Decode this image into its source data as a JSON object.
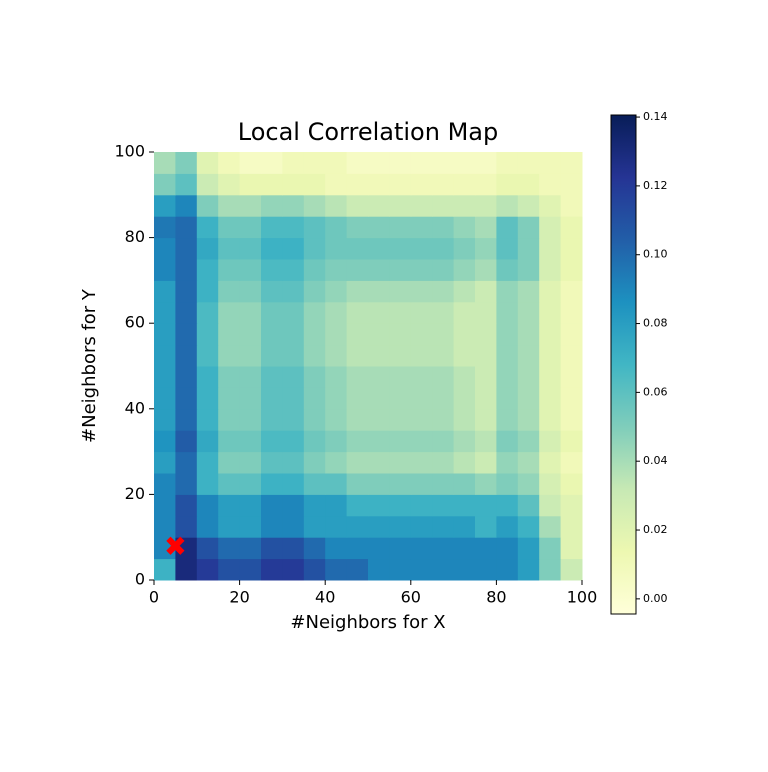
{
  "chart_data": {
    "type": "heatmap",
    "title": "Local Correlation Map",
    "xlabel": "#Neighbors for X",
    "ylabel": "#Neighbors for Y",
    "xbins": [
      0,
      5,
      10,
      15,
      20,
      25,
      30,
      35,
      40,
      45,
      50,
      55,
      60,
      65,
      70,
      75,
      80,
      85,
      90,
      95,
      100
    ],
    "ybins": [
      0,
      5,
      10,
      15,
      20,
      25,
      30,
      35,
      40,
      45,
      50,
      55,
      60,
      65,
      70,
      75,
      80,
      85,
      90,
      95,
      100
    ],
    "values": [
      [
        0.07,
        0.13,
        0.12,
        0.11,
        0.11,
        0.12,
        0.12,
        0.11,
        0.1,
        0.1,
        0.09,
        0.09,
        0.09,
        0.09,
        0.09,
        0.09,
        0.09,
        0.08,
        0.05,
        0.03
      ],
      [
        0.09,
        0.13,
        0.11,
        0.1,
        0.1,
        0.11,
        0.11,
        0.1,
        0.09,
        0.09,
        0.09,
        0.09,
        0.09,
        0.09,
        0.09,
        0.09,
        0.09,
        0.08,
        0.05,
        0.02
      ],
      [
        0.09,
        0.11,
        0.09,
        0.08,
        0.08,
        0.09,
        0.09,
        0.08,
        0.08,
        0.08,
        0.08,
        0.08,
        0.08,
        0.08,
        0.08,
        0.07,
        0.08,
        0.07,
        0.04,
        0.02
      ],
      [
        0.09,
        0.11,
        0.09,
        0.08,
        0.08,
        0.09,
        0.09,
        0.08,
        0.08,
        0.07,
        0.07,
        0.07,
        0.07,
        0.07,
        0.07,
        0.07,
        0.07,
        0.06,
        0.03,
        0.02
      ],
      [
        0.09,
        0.1,
        0.07,
        0.06,
        0.06,
        0.07,
        0.07,
        0.06,
        0.06,
        0.05,
        0.05,
        0.05,
        0.05,
        0.05,
        0.05,
        0.045,
        0.05,
        0.045,
        0.025,
        0.015
      ],
      [
        0.08,
        0.1,
        0.07,
        0.05,
        0.05,
        0.06,
        0.06,
        0.05,
        0.045,
        0.04,
        0.04,
        0.04,
        0.04,
        0.04,
        0.035,
        0.03,
        0.045,
        0.04,
        0.02,
        0.01
      ],
      [
        0.085,
        0.105,
        0.075,
        0.055,
        0.055,
        0.065,
        0.065,
        0.055,
        0.05,
        0.045,
        0.045,
        0.045,
        0.045,
        0.045,
        0.04,
        0.035,
        0.05,
        0.045,
        0.025,
        0.015
      ],
      [
        0.08,
        0.1,
        0.07,
        0.05,
        0.05,
        0.06,
        0.06,
        0.05,
        0.045,
        0.04,
        0.04,
        0.04,
        0.04,
        0.04,
        0.035,
        0.03,
        0.045,
        0.04,
        0.02,
        0.01
      ],
      [
        0.08,
        0.1,
        0.07,
        0.05,
        0.05,
        0.06,
        0.06,
        0.05,
        0.045,
        0.04,
        0.04,
        0.04,
        0.04,
        0.04,
        0.035,
        0.03,
        0.045,
        0.04,
        0.02,
        0.01
      ],
      [
        0.08,
        0.1,
        0.07,
        0.05,
        0.05,
        0.06,
        0.06,
        0.05,
        0.045,
        0.04,
        0.04,
        0.04,
        0.04,
        0.04,
        0.035,
        0.03,
        0.045,
        0.04,
        0.02,
        0.01
      ],
      [
        0.08,
        0.1,
        0.065,
        0.045,
        0.045,
        0.055,
        0.055,
        0.045,
        0.04,
        0.035,
        0.035,
        0.035,
        0.035,
        0.035,
        0.03,
        0.03,
        0.045,
        0.04,
        0.02,
        0.01
      ],
      [
        0.08,
        0.1,
        0.065,
        0.045,
        0.045,
        0.055,
        0.055,
        0.045,
        0.04,
        0.035,
        0.035,
        0.035,
        0.035,
        0.035,
        0.03,
        0.03,
        0.045,
        0.04,
        0.02,
        0.01
      ],
      [
        0.08,
        0.1,
        0.065,
        0.045,
        0.045,
        0.055,
        0.055,
        0.045,
        0.04,
        0.035,
        0.035,
        0.035,
        0.035,
        0.035,
        0.03,
        0.03,
        0.045,
        0.04,
        0.02,
        0.01
      ],
      [
        0.08,
        0.1,
        0.07,
        0.05,
        0.05,
        0.06,
        0.06,
        0.05,
        0.045,
        0.04,
        0.04,
        0.04,
        0.04,
        0.04,
        0.035,
        0.03,
        0.045,
        0.04,
        0.02,
        0.01
      ],
      [
        0.09,
        0.1,
        0.07,
        0.055,
        0.055,
        0.065,
        0.065,
        0.055,
        0.05,
        0.05,
        0.05,
        0.05,
        0.05,
        0.05,
        0.045,
        0.04,
        0.055,
        0.05,
        0.025,
        0.015
      ],
      [
        0.09,
        0.1,
        0.075,
        0.06,
        0.06,
        0.07,
        0.07,
        0.06,
        0.055,
        0.055,
        0.055,
        0.055,
        0.055,
        0.055,
        0.05,
        0.045,
        0.06,
        0.05,
        0.025,
        0.015
      ],
      [
        0.095,
        0.1,
        0.07,
        0.055,
        0.055,
        0.065,
        0.065,
        0.06,
        0.055,
        0.05,
        0.05,
        0.05,
        0.05,
        0.05,
        0.045,
        0.04,
        0.06,
        0.05,
        0.025,
        0.015
      ],
      [
        0.08,
        0.09,
        0.05,
        0.04,
        0.04,
        0.045,
        0.045,
        0.04,
        0.035,
        0.03,
        0.03,
        0.03,
        0.03,
        0.03,
        0.03,
        0.03,
        0.035,
        0.03,
        0.02,
        0.01
      ],
      [
        0.05,
        0.06,
        0.03,
        0.02,
        0.015,
        0.015,
        0.015,
        0.015,
        0.01,
        0.01,
        0.01,
        0.01,
        0.01,
        0.01,
        0.01,
        0.01,
        0.015,
        0.015,
        0.01,
        0.01
      ],
      [
        0.04,
        0.05,
        0.02,
        0.01,
        0.005,
        0.005,
        0.01,
        0.01,
        0.01,
        0.005,
        0.005,
        0.005,
        0.005,
        0.005,
        0.005,
        0.005,
        0.01,
        0.01,
        0.01,
        0.01
      ]
    ],
    "xlim": [
      0,
      100
    ],
    "ylim": [
      0,
      100
    ],
    "xticks": [
      0,
      20,
      40,
      60,
      80,
      100
    ],
    "yticks": [
      0,
      20,
      40,
      60,
      80,
      100
    ],
    "colors": [
      "#ffffd9",
      "#edf8b1",
      "#c7e9b4",
      "#7fcdbb",
      "#41b6c4",
      "#1d91c0",
      "#225ea8",
      "#253494",
      "#081d58"
    ],
    "clim": [
      -0.0044,
      0.1406
    ],
    "cticks": [
      {
        "value": 0,
        "label": "0.00"
      },
      {
        "value": 0.02,
        "label": "0.02"
      },
      {
        "value": 0.04,
        "label": "0.04"
      },
      {
        "value": 0.06,
        "label": "0.06"
      },
      {
        "value": 0.08,
        "label": "0.08"
      },
      {
        "value": 0.1,
        "label": "0.10"
      },
      {
        "value": 0.12,
        "label": "0.12"
      },
      {
        "value": 0.14,
        "label": "0.14"
      }
    ],
    "marker": {
      "x": 5,
      "y": 8,
      "color": "#ff0000"
    }
  }
}
